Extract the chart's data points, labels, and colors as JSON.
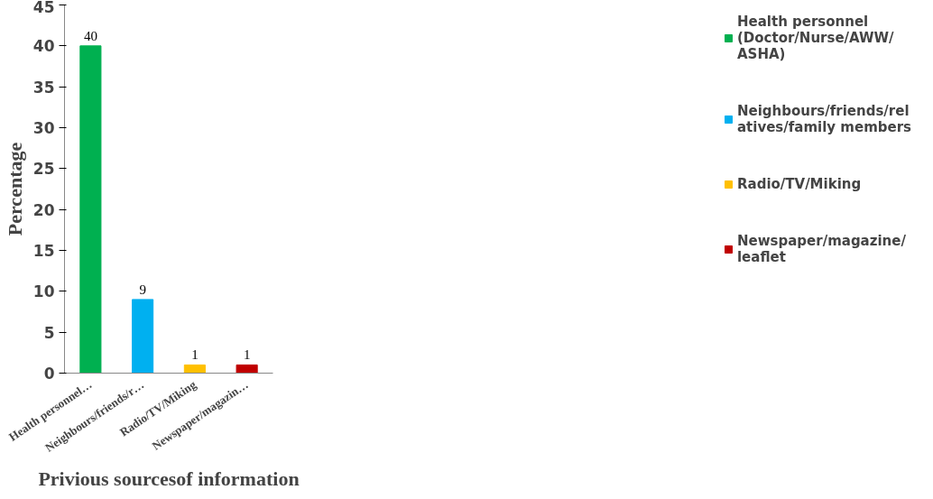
{
  "chart_data": {
    "type": "bar",
    "xlabel": "Privious sourcesof information",
    "ylabel": "Percentage",
    "categories": [
      "Health personnel…",
      "Neighbours/friends/r…",
      "Radio/TV/Miking",
      "Newspaper/magazin…"
    ],
    "series": [
      {
        "name": "Health personnel (Doctor/Nurse/AWW/ ASHA)",
        "color": "#00b050",
        "values": [
          40,
          null,
          null,
          null
        ]
      },
      {
        "name": "Neighbours/friends/relatives/family members",
        "color": "#00b0f0",
        "values": [
          null,
          9,
          null,
          null
        ]
      },
      {
        "name": "Radio/TV/Miking",
        "color": "#ffc000",
        "values": [
          null,
          null,
          1,
          null
        ]
      },
      {
        "name": "Newspaper/magazine/ leaflet",
        "color": "#c00000",
        "values": [
          null,
          null,
          null,
          1
        ]
      }
    ],
    "ylim": [
      0,
      45
    ],
    "yticks": [
      0,
      5,
      10,
      15,
      20,
      25,
      30,
      35,
      40,
      45
    ],
    "grid": false,
    "legend": "right",
    "data_labels": true
  }
}
